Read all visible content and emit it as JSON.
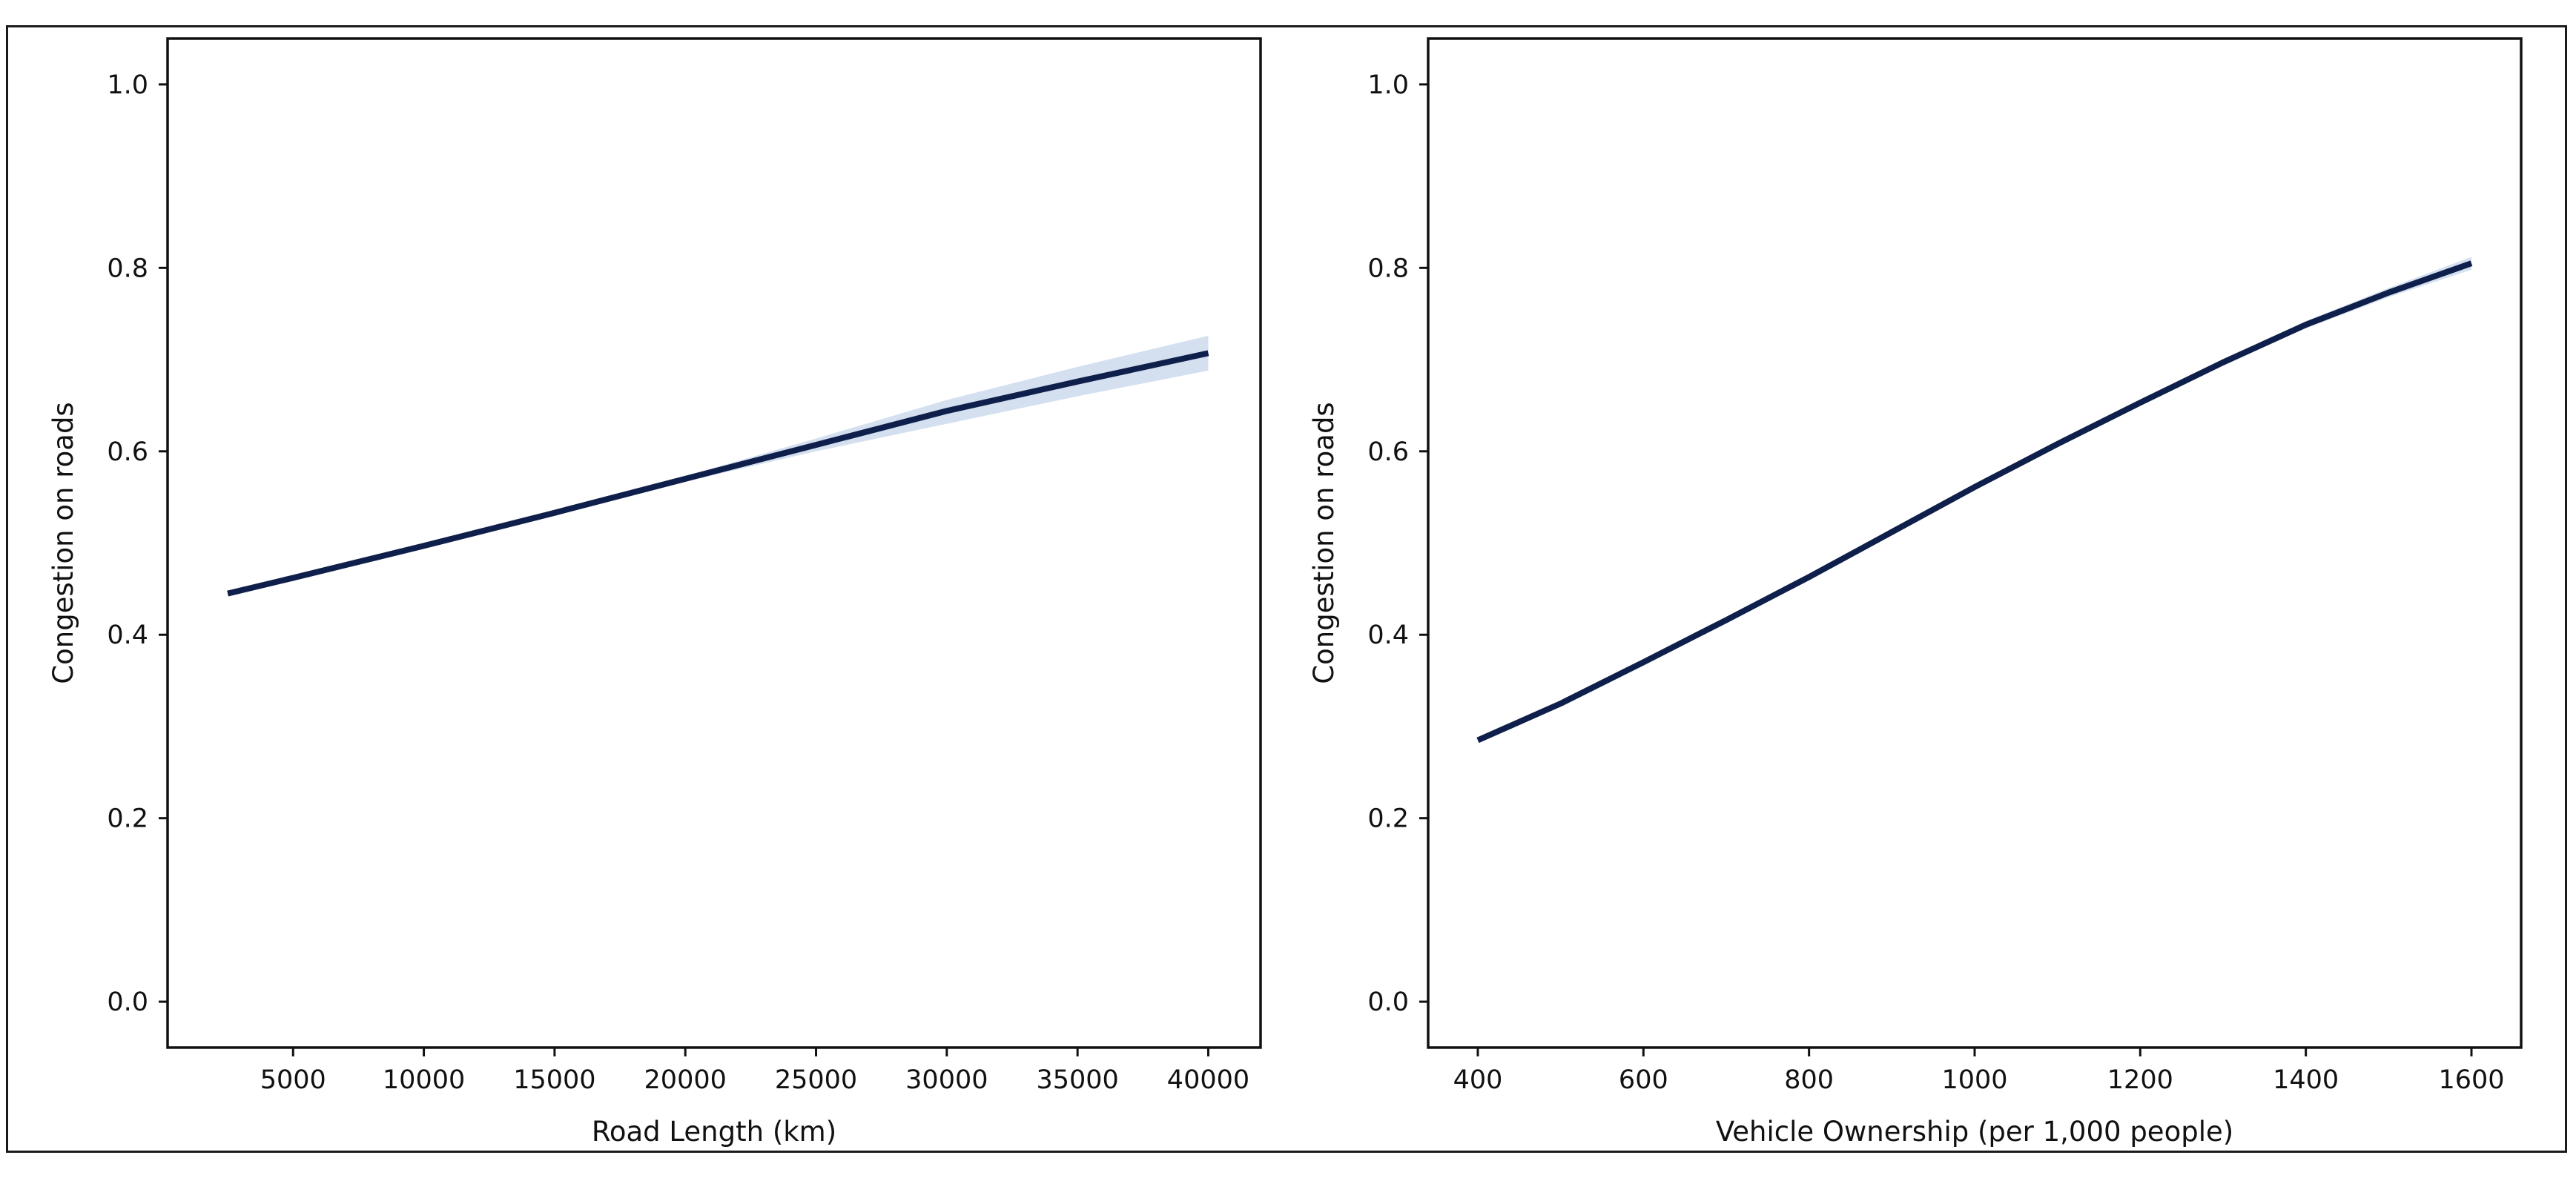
{
  "colors": {
    "line": "#0f1f4b",
    "band": "#c6d6ea",
    "axes": "#111111",
    "background": "#ffffff"
  },
  "chart_data": [
    {
      "type": "line",
      "xlabel": "Road Length (km)",
      "ylabel": "Congestion on roads",
      "xlim": [
        200,
        42000
      ],
      "ylim": [
        -0.05,
        1.05
      ],
      "xticks": [
        5000,
        10000,
        15000,
        20000,
        25000,
        30000,
        35000,
        40000
      ],
      "xtick_labels": [
        "5000",
        "10000",
        "15000",
        "20000",
        "25000",
        "30000",
        "35000",
        "40000"
      ],
      "yticks": [
        0.0,
        0.2,
        0.4,
        0.6,
        0.8,
        1.0
      ],
      "ytick_labels": [
        "0.0",
        "0.2",
        "0.4",
        "0.6",
        "0.8",
        "1.0"
      ],
      "grid": false,
      "series": [
        {
          "x": [
            2500,
            5000,
            10000,
            15000,
            20000,
            25000,
            30000,
            35000,
            40000
          ],
          "y": [
            0.445,
            0.462,
            0.497,
            0.533,
            0.57,
            0.607,
            0.644,
            0.676,
            0.707
          ],
          "ci_lower": [
            0.443,
            0.46,
            0.495,
            0.531,
            0.567,
            0.6,
            0.63,
            0.66,
            0.688
          ],
          "ci_upper": [
            0.447,
            0.464,
            0.499,
            0.535,
            0.573,
            0.614,
            0.656,
            0.692,
            0.726
          ]
        }
      ]
    },
    {
      "type": "line",
      "xlabel": "Vehicle Ownership (per 1,000 people)",
      "ylabel": "Congestion on roads",
      "xlim": [
        340,
        1660
      ],
      "ylim": [
        -0.05,
        1.05
      ],
      "xticks": [
        400,
        600,
        800,
        1000,
        1200,
        1400,
        1600
      ],
      "xtick_labels": [
        "400",
        "600",
        "800",
        "1000",
        "1200",
        "1400",
        "1600"
      ],
      "yticks": [
        0.0,
        0.2,
        0.4,
        0.6,
        0.8,
        1.0
      ],
      "ytick_labels": [
        "0.0",
        "0.2",
        "0.4",
        "0.6",
        "0.8",
        "1.0"
      ],
      "grid": false,
      "series": [
        {
          "x": [
            400,
            500,
            600,
            700,
            800,
            900,
            1000,
            1100,
            1200,
            1300,
            1400,
            1500,
            1600
          ],
          "y": [
            0.285,
            0.325,
            0.37,
            0.416,
            0.463,
            0.512,
            0.561,
            0.608,
            0.653,
            0.697,
            0.738,
            0.773,
            0.805
          ],
          "ci_lower": [
            0.283,
            0.323,
            0.368,
            0.414,
            0.461,
            0.51,
            0.559,
            0.606,
            0.651,
            0.694,
            0.734,
            0.768,
            0.798
          ],
          "ci_upper": [
            0.287,
            0.327,
            0.372,
            0.418,
            0.465,
            0.514,
            0.563,
            0.61,
            0.655,
            0.7,
            0.742,
            0.778,
            0.812
          ]
        }
      ]
    }
  ]
}
